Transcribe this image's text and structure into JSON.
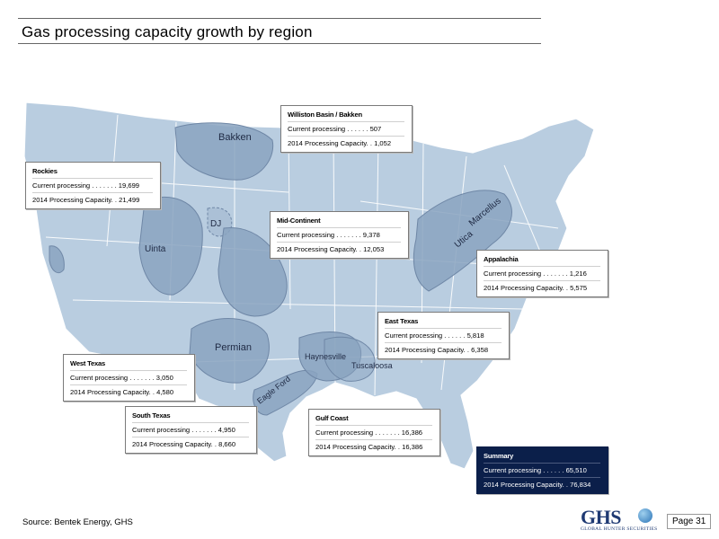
{
  "header": {
    "title": "Gas processing capacity growth by region"
  },
  "map": {
    "regions": {
      "bakken": "Bakken",
      "dj": "DJ",
      "uinta": "Uinta",
      "permian": "Permian",
      "haynesville": "Haynesville",
      "tuscaloosa": "Tuscaloosa",
      "eagle_ford": "Eagle Ford",
      "marcellus": "Marcellus",
      "utica": "Utica"
    }
  },
  "callouts": {
    "williston": {
      "title": "Williston Basin / Bakken",
      "current_label": "Current processing . . . . . . 507",
      "capacity_label": "2014 Processing Capacity. . 1,052"
    },
    "rockies": {
      "title": "Rockies",
      "current_label": "Current processing . . . . . . . 19,699",
      "capacity_label": "2014 Processing Capacity. . 21,499"
    },
    "midcontinent": {
      "title": "Mid-Continent",
      "current_label": "Current processing . . . . . . . 9,378",
      "capacity_label": "2014 Processing Capacity. . 12,053"
    },
    "appalachia": {
      "title": "Appalachia",
      "current_label": "Current processing . . . . . . . 1,216",
      "capacity_label": "2014 Processing Capacity. . 5,575"
    },
    "easttexas": {
      "title": "East Texas",
      "current_label": "Current processing . . . . . . 5,818",
      "capacity_label": "2014 Processing Capacity. . 6,358"
    },
    "westtexas": {
      "title": "West Texas",
      "current_label": "Current processing . . . . . . . 3,050",
      "capacity_label": "2014 Processing Capacity. . 4,580"
    },
    "southtexas": {
      "title": "South Texas",
      "current_label": "Current processing . . . . . . . 4,950",
      "capacity_label": "2014 Processing Capacity. . 8,660"
    },
    "gulfcoast": {
      "title": "Gulf Coast",
      "current_label": "Current processing . . . . . . . 16,386",
      "capacity_label": "2014 Processing Capacity. . 16,386"
    },
    "summary": {
      "title": "Summary",
      "current_label": "Current processing . . . . . . 65,510",
      "capacity_label": "2014 Processing Capacity. . 76,834"
    }
  },
  "footer": {
    "source": "Source: Bentek Energy, GHS",
    "logo_text": "GHS",
    "logo_sub": "GLOBAL HUNTER SECURITIES",
    "page": "Page 31"
  },
  "colors": {
    "land": "#b9cde0",
    "basin": "#8aa3bf",
    "state_line": "#ffffff",
    "summary_bg": "#0b1f4a"
  }
}
